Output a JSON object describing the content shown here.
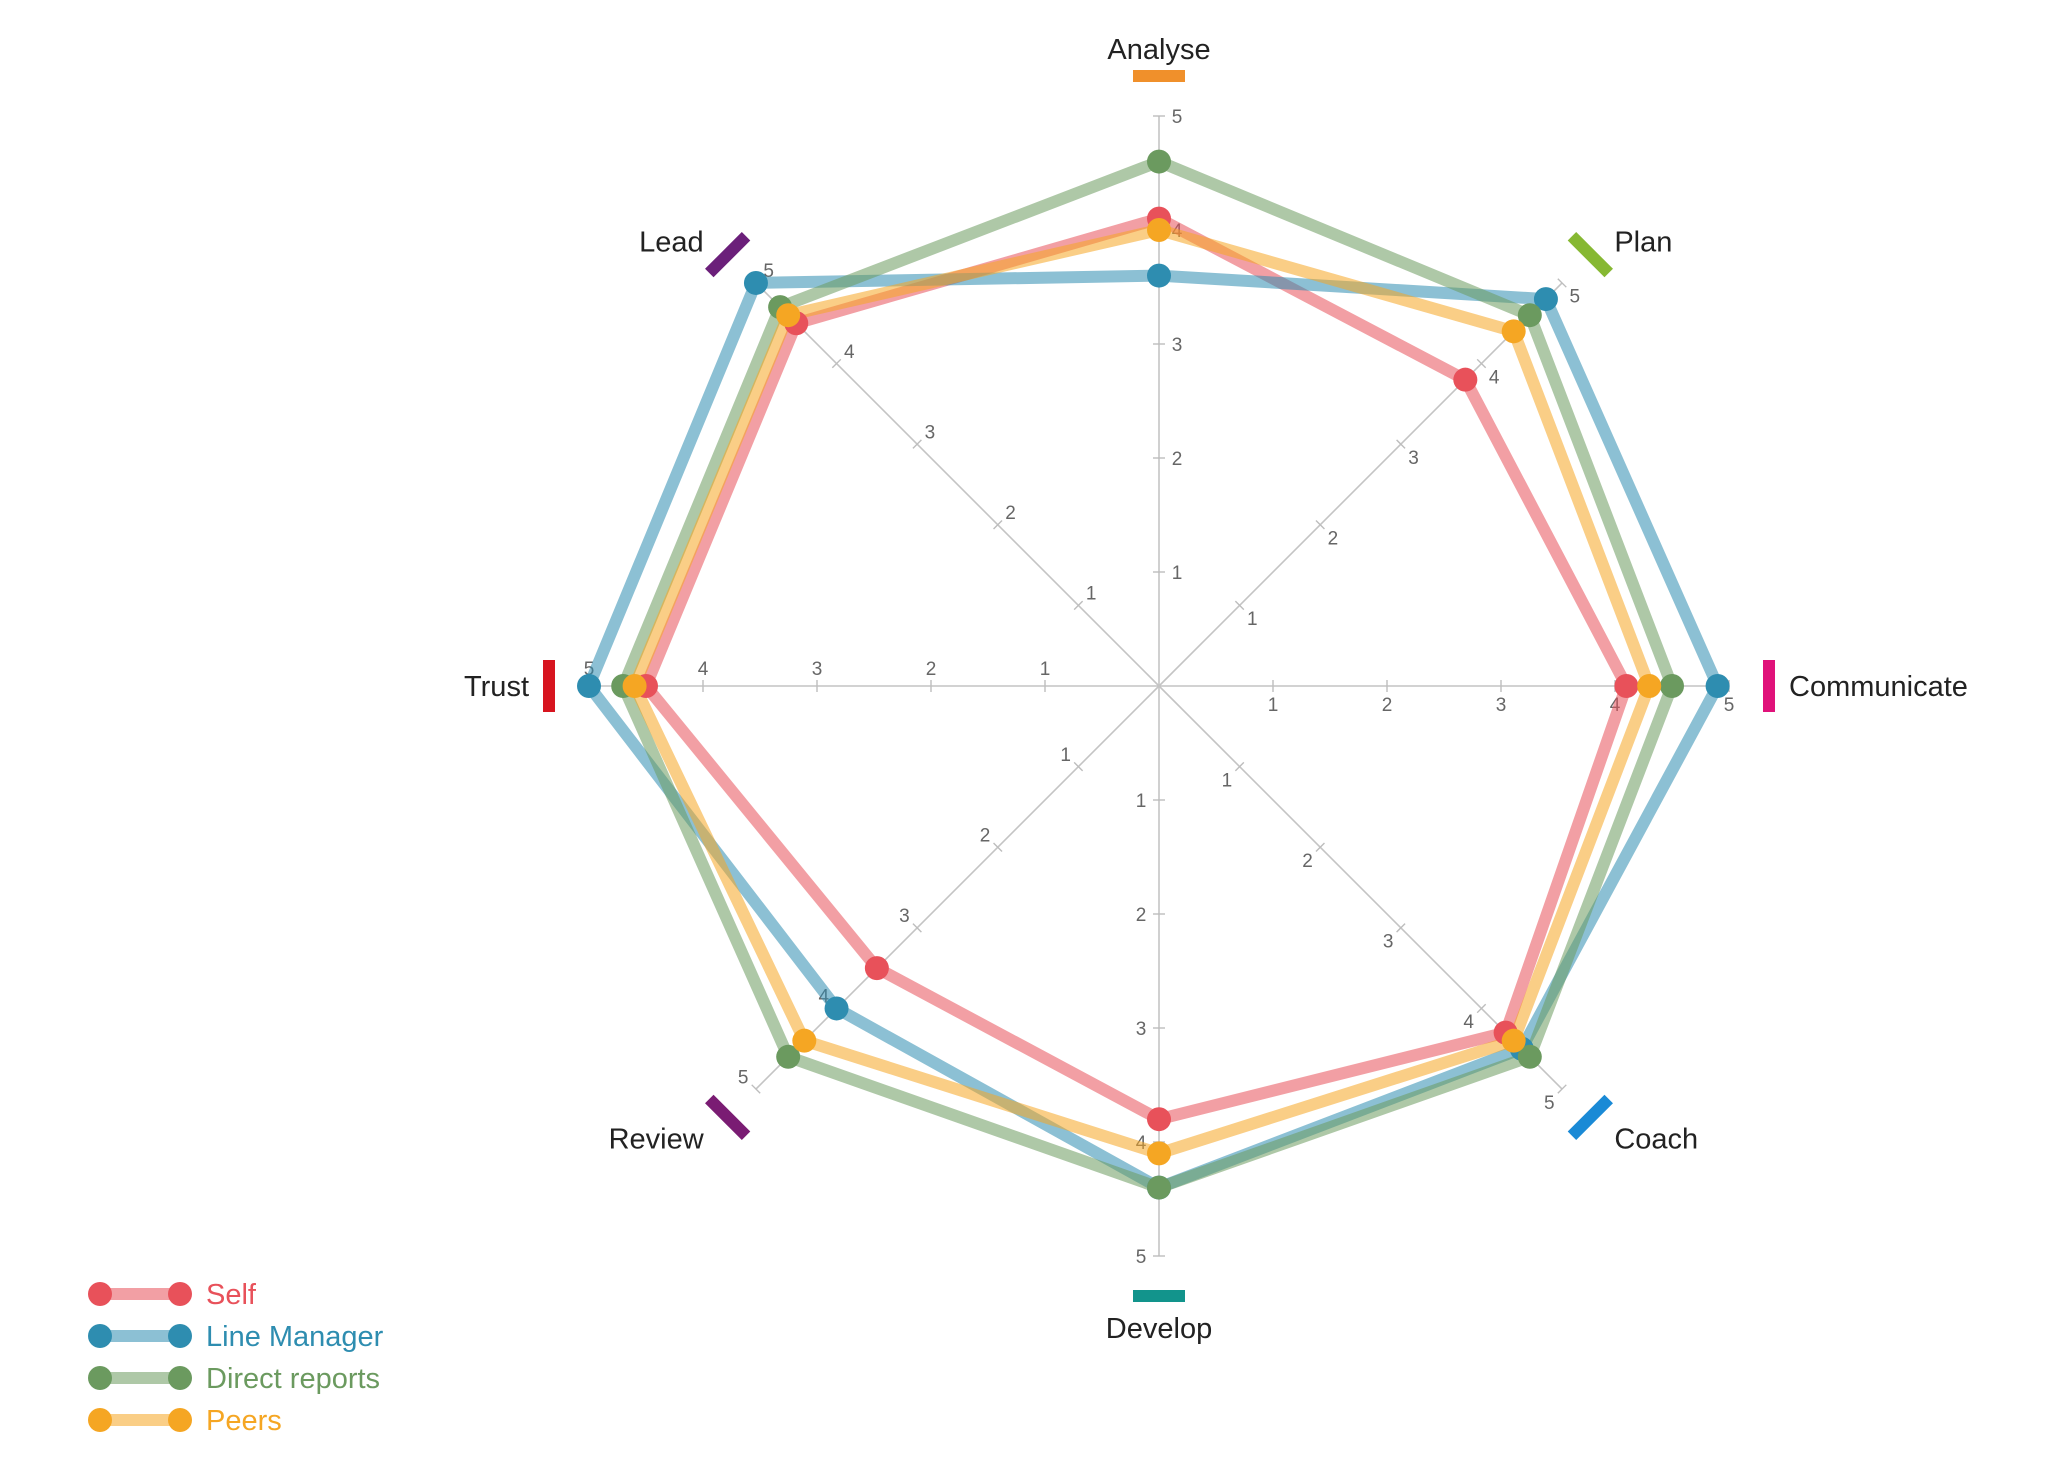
{
  "chart_data": {
    "type": "radar",
    "categories": [
      "Analyse",
      "Plan",
      "Communicate",
      "Coach",
      "Develop",
      "Review",
      "Trust",
      "Lead"
    ],
    "category_colors": [
      "#f0902b",
      "#86b832",
      "#e0127a",
      "#1a8ad6",
      "#12948c",
      "#7a1c73",
      "#d7141f",
      "#6b1f7a"
    ],
    "rlim": [
      0,
      5
    ],
    "ticks": [
      1,
      2,
      3,
      4,
      5
    ],
    "tick_labels": [
      "1",
      "2",
      "3",
      "4",
      "5"
    ],
    "series": [
      {
        "name": "Self",
        "color": "#e8515a",
        "values": [
          4.1,
          3.8,
          4.1,
          4.3,
          3.8,
          3.5,
          4.5,
          4.5
        ]
      },
      {
        "name": "Line Manager",
        "color": "#2e8db0",
        "values": [
          3.6,
          4.8,
          4.9,
          4.5,
          4.4,
          4.0,
          5.0,
          5.0
        ]
      },
      {
        "name": "Direct reports",
        "color": "#6b9a5f",
        "values": [
          4.6,
          4.6,
          4.5,
          4.6,
          4.4,
          4.6,
          4.7,
          4.7
        ]
      },
      {
        "name": "Peers",
        "color": "#f5a623",
        "values": [
          4.0,
          4.4,
          4.3,
          4.4,
          4.1,
          4.4,
          4.6,
          4.6
        ]
      }
    ],
    "legend_position": "bottom-left"
  }
}
